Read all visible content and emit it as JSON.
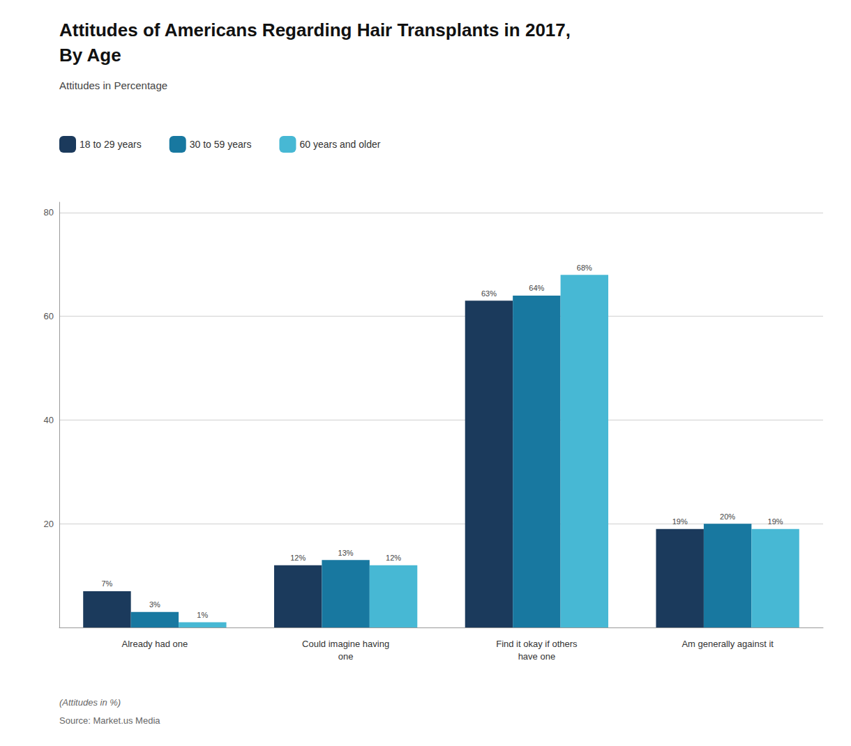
{
  "chart_data": {
    "type": "bar",
    "title": "Attitudes of Americans Regarding Hair Transplants in 2017,\nBy Age",
    "subtitle": "Attitudes in Percentage",
    "categories": [
      "Already had one",
      "Could imagine having\none",
      "Find it okay if others\nhave one",
      "Am generally against it"
    ],
    "series": [
      {
        "name": "18 to 29 years",
        "color": "#1b3a5c",
        "values": [
          7,
          12,
          63,
          19
        ],
        "value_labels": [
          "7%",
          "12%",
          "63%",
          "19%"
        ]
      },
      {
        "name": "30 to 59 years",
        "color": "#1878a0",
        "values": [
          3,
          13,
          64,
          20
        ],
        "value_labels": [
          "3%",
          "13%",
          "64%",
          "20%"
        ]
      },
      {
        "name": "60 years and older",
        "color": "#47b8d4",
        "values": [
          1,
          12,
          68,
          19
        ],
        "value_labels": [
          "1%",
          "12%",
          "68%",
          "19%"
        ]
      }
    ],
    "ylim": [
      0,
      82
    ],
    "yticks": [
      20,
      40,
      60,
      80
    ],
    "grid": true,
    "legend": "upper-left",
    "data_labels": true,
    "annotations": [
      "(Attitudes in %)",
      "Source: Market.us Media"
    ]
  }
}
